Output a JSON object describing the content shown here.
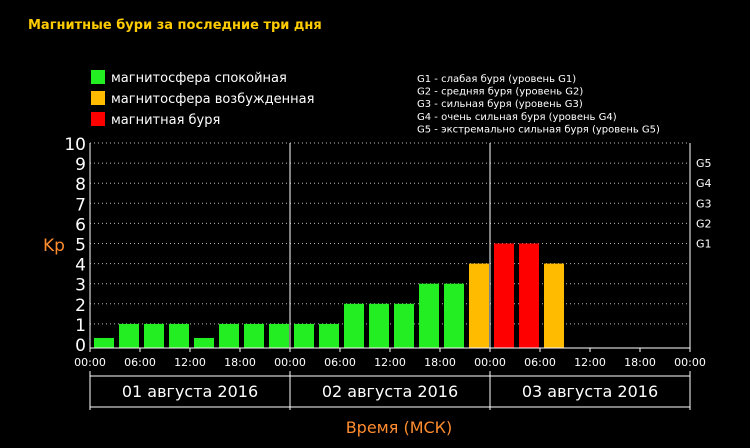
{
  "chart_data": {
    "type": "bar",
    "title": "Магнитные бури за последние три дня",
    "ylabel": "Kp",
    "xlabel": "Время (МСК)",
    "ylim": [
      0,
      10
    ],
    "yticks": [
      "0",
      "1",
      "2",
      "3",
      "4",
      "5",
      "6",
      "7",
      "8",
      "9",
      "10"
    ],
    "storm_levels": [
      {
        "label": "G1",
        "kp": 5
      },
      {
        "label": "G2",
        "kp": 6
      },
      {
        "label": "G3",
        "kp": 7
      },
      {
        "label": "G4",
        "kp": 8
      },
      {
        "label": "G5",
        "kp": 9
      }
    ],
    "time_ticks": [
      "00:00",
      "06:00",
      "12:00",
      "18:00",
      "00:00",
      "06:00",
      "12:00",
      "18:00",
      "00:00",
      "06:00",
      "12:00",
      "18:00",
      "00:00"
    ],
    "days": [
      "01 августа 2016",
      "02 августа 2016",
      "03 августа 2016"
    ],
    "grid": "horizontal dotted",
    "legend": [
      {
        "label": "магнитосфера спокойная",
        "color": "#22ee22"
      },
      {
        "label": "магнитосфера возбужденная",
        "color": "#ffbb00"
      },
      {
        "label": "магнитная буря",
        "color": "#ff0000"
      }
    ],
    "storm_legend": [
      "G1 - слабая буря (уровень G1)",
      "G2 - средняя буря (уровень G2)",
      "G3 - сильная буря (уровень G3)",
      "G4 - очень сильная буря (уровень G4)",
      "G5 - экстремально сильная буря (уровень G5)"
    ],
    "values": [
      0.3,
      1,
      1,
      1,
      0.3,
      1,
      1,
      1,
      1,
      1,
      2,
      2,
      2,
      3,
      3,
      4,
      5,
      5,
      4
    ],
    "colors": {
      "quiet": "#22ee22",
      "active": "#ffbb00",
      "storm": "#ff0000",
      "accent": "#ff8c2e",
      "title": "#ffcc00"
    }
  }
}
